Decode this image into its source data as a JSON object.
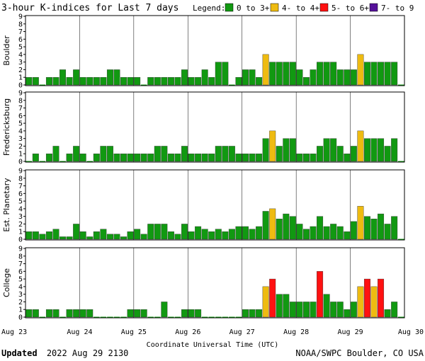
{
  "header": {
    "title": "3-hour K-indices for Last 7 days",
    "legend_label": "Legend:",
    "legend": [
      {
        "label": "0 to 3+",
        "color": "#119911"
      },
      {
        "label": "4- to 4+",
        "color": "#eebb11"
      },
      {
        "label": "5- to 6+",
        "color": "#ff1111"
      },
      {
        "label": "7- to 9",
        "color": "#551199"
      }
    ]
  },
  "footer": {
    "updated_label": "Updated",
    "updated_value": "2022 Aug 29 2130",
    "source": "NOAA/SWPC Boulder, CO USA"
  },
  "chart_data": {
    "type": "bar",
    "title": "3-hour K-indices for Last 7 days",
    "xlabel": "Coordinate Universal Time (UTC)",
    "x_ticks": [
      "Aug 23",
      "Aug 24",
      "Aug 25",
      "Aug 26",
      "Aug 27",
      "Aug 28",
      "Aug 29",
      "Aug 30"
    ],
    "ylim": [
      0,
      9
    ],
    "y_ticks": [
      0,
      1,
      2,
      3,
      4,
      5,
      6,
      7,
      8,
      9
    ],
    "bars_per_day": 8,
    "series": [
      {
        "name": "Boulder",
        "values": [
          1,
          1,
          0,
          1,
          1,
          2,
          1,
          2,
          1,
          1,
          1,
          1,
          2,
          2,
          1,
          1,
          1,
          0,
          1,
          1,
          1,
          1,
          1,
          2,
          1,
          1,
          2,
          1,
          3,
          3,
          0,
          1,
          2,
          2,
          1,
          4,
          3,
          3,
          3,
          3,
          2,
          1,
          2,
          3,
          3,
          3,
          2,
          2,
          2,
          4,
          3,
          3,
          3,
          3,
          3,
          0
        ]
      },
      {
        "name": "Fredericksburg",
        "values": [
          0,
          1,
          0,
          1,
          2,
          0,
          1,
          2,
          1,
          0,
          1,
          2,
          2,
          1,
          1,
          1,
          1,
          1,
          1,
          2,
          2,
          1,
          1,
          2,
          1,
          1,
          1,
          1,
          2,
          2,
          2,
          1,
          1,
          1,
          1,
          3,
          4,
          2,
          3,
          3,
          1,
          1,
          1,
          2,
          3,
          3,
          2,
          1,
          2,
          4,
          3,
          3,
          3,
          2,
          3,
          0
        ]
      },
      {
        "name": "Est. Planetary",
        "values": [
          1,
          1,
          0.67,
          1,
          1.33,
          0.33,
          0.33,
          2,
          1,
          0.33,
          1,
          1.33,
          0.67,
          0.67,
          0.33,
          1,
          1.33,
          0.67,
          2,
          2,
          2,
          1,
          0.67,
          2,
          1,
          1.67,
          1.33,
          1,
          1.33,
          1,
          1.33,
          1.67,
          1.67,
          1.33,
          1.67,
          3.67,
          4,
          2.67,
          3.33,
          3,
          2,
          1.33,
          1.67,
          3,
          1.67,
          2,
          1.67,
          1,
          2.33,
          4.33,
          3,
          2.67,
          3.33,
          2,
          3,
          0
        ]
      },
      {
        "name": "College",
        "values": [
          1,
          1,
          0,
          1,
          1,
          0,
          1,
          1,
          1,
          1,
          0,
          0,
          0,
          0,
          0,
          1,
          1,
          1,
          0,
          0,
          2,
          0,
          0,
          1,
          1,
          1,
          0,
          0,
          0,
          0,
          0,
          0,
          1,
          1,
          1,
          4,
          5,
          3,
          3,
          2,
          2,
          2,
          2,
          6,
          3,
          2,
          2,
          1,
          2,
          4,
          5,
          4,
          5,
          1,
          2,
          0
        ]
      }
    ],
    "color_thresholds": [
      {
        "min": 0,
        "max": 4,
        "color": "#119911"
      },
      {
        "min": 4,
        "max": 5,
        "color": "#eebb11"
      },
      {
        "min": 5,
        "max": 7,
        "color": "#ff1111"
      },
      {
        "min": 7,
        "max": 10,
        "color": "#551199"
      }
    ]
  }
}
